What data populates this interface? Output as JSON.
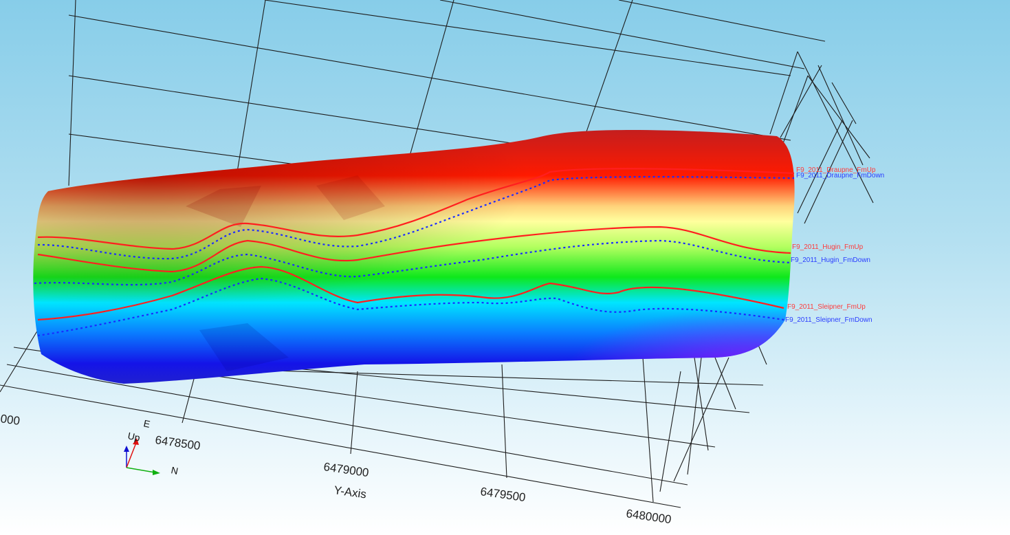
{
  "scene": {
    "axis_title": "Y-Axis",
    "tick_labels": [
      "000",
      "6478500",
      "6479000",
      "6479500",
      "6480000"
    ],
    "orientation_triad": {
      "up_label": "Up",
      "east_label": "E",
      "north_label": "N"
    }
  },
  "horizons": [
    {
      "name": "F9_2011_Draupne_FmUp",
      "color": "#ff3a3a"
    },
    {
      "name": "F9_2011_Draupne_FmDown",
      "color": "#2a3cff"
    },
    {
      "name": "F9_2011_Hugin_FmUp",
      "color": "#ff3a3a"
    },
    {
      "name": "F9_2011_Hugin_FmDown",
      "color": "#2a3cff"
    },
    {
      "name": "F9_2011_Sleipner_FmUp",
      "color": "#ff3a3a"
    },
    {
      "name": "F9_2011_Sleipner_FmDown",
      "color": "#2a3cff"
    }
  ],
  "colors": {
    "grid": "#1c1c1c",
    "surface_gradient": [
      "#c41e1e",
      "#ff1a00",
      "#ffd27a",
      "#ffff9e",
      "#b4ff60",
      "#0ee81b",
      "#00e5ff",
      "#0a7dff",
      "#1414e8",
      "#7f1cff"
    ]
  }
}
